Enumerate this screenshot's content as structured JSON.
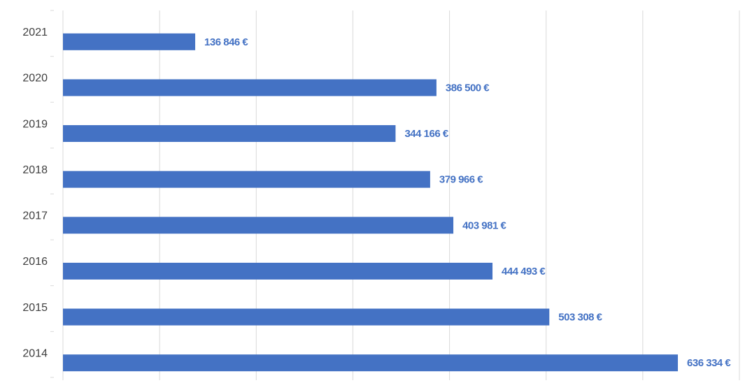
{
  "chart_data": {
    "type": "bar",
    "orientation": "horizontal",
    "categories": [
      "2021",
      "2020",
      "2019",
      "2018",
      "2017",
      "2016",
      "2015",
      "2014"
    ],
    "values": [
      136846,
      386500,
      344166,
      379966,
      403981,
      444493,
      503308,
      636334
    ],
    "value_labels": [
      "136 846 €",
      "386 500 €",
      "344 166 €",
      "379 966 €",
      "403 981 €",
      "444 493 €",
      "503 308 €",
      "636 334 €"
    ],
    "color": "#4472c4",
    "xlim": [
      0,
      700000
    ],
    "xticks": [
      0,
      100000,
      200000,
      300000,
      400000,
      500000,
      600000,
      700000
    ],
    "grid": true
  }
}
